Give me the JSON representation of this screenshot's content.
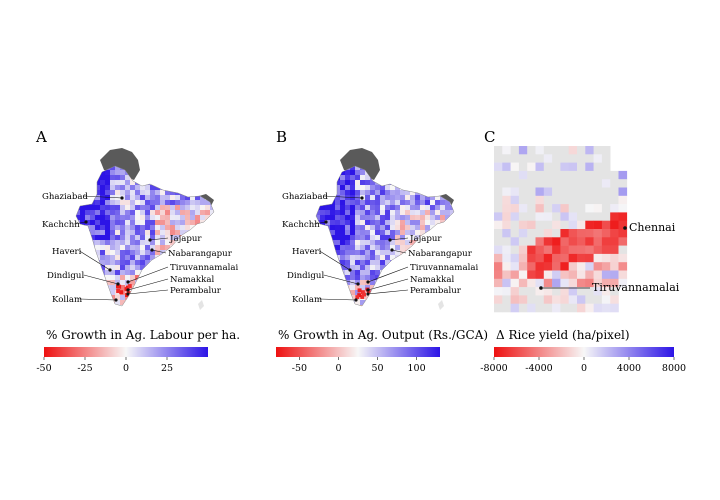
{
  "panels": [
    {
      "letter": "A",
      "colorbar": {
        "label": "% Growth in Ag. Labour per ha.",
        "min": -50,
        "max": 50,
        "ticks": [
          -50,
          -25,
          0,
          25
        ],
        "tick_labels": [
          "-50",
          "-25",
          "0",
          "25"
        ],
        "palette": [
          "#ee1111",
          "#f7f7f7",
          "#2c14e6"
        ]
      },
      "districts": [
        "Ghaziabad",
        "Kachchh",
        "Haveri",
        "Dindigul",
        "Kollam",
        "Jajapur",
        "Nabarangapur",
        "Tiruvannamalai",
        "Namakkal",
        "Perambalur"
      ]
    },
    {
      "letter": "B",
      "colorbar": {
        "label": "% Growth in Ag. Output (Rs./GCA)",
        "min": -80,
        "max": 130,
        "ticks": [
          -50,
          0,
          50,
          100
        ],
        "tick_labels": [
          "-50",
          "0",
          "50",
          "100"
        ],
        "palette": [
          "#ee1111",
          "#f7f7f7",
          "#2c14e6"
        ]
      },
      "districts": [
        "Ghaziabad",
        "Kachchh",
        "Haveri",
        "Dindigul",
        "Kollam",
        "Jajapur",
        "Nabarangapur",
        "Tiruvannamalai",
        "Namakkal",
        "Perambalur"
      ]
    },
    {
      "letter": "C",
      "colorbar": {
        "label": "Δ Rice yield (ha/pixel)",
        "min": -8000,
        "max": 8000,
        "ticks": [
          -8000,
          -4000,
          0,
          4000,
          8000
        ],
        "tick_labels": [
          "-8000",
          "-4000",
          "0",
          "4000",
          "8000"
        ],
        "palette": [
          "#ee1111",
          "#f7f7f7",
          "#2c14e6"
        ]
      },
      "cities": [
        "Chennai",
        "Tiruvannamalai"
      ]
    }
  ],
  "colors": {
    "negative": "#ee1111",
    "neutral": "#f7f7f7",
    "positive": "#2c14e6",
    "nodata": "#e4e4e4",
    "outside": "#5a5a5a"
  }
}
